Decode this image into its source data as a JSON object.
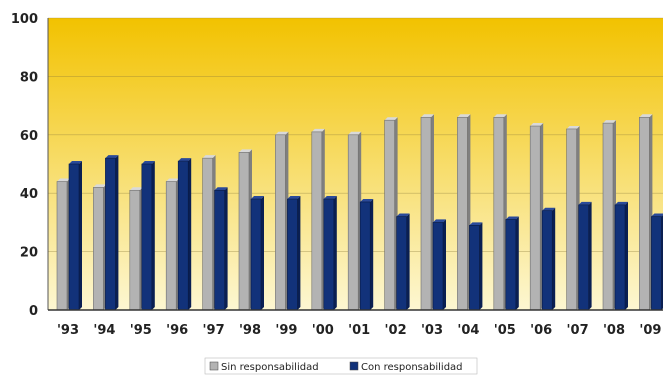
{
  "chart_data": {
    "type": "bar",
    "categories": [
      "'93",
      "'94",
      "'95",
      "'96",
      "'97",
      "'98",
      "'99",
      "'00",
      "'01",
      "'02",
      "'03",
      "'04",
      "'05",
      "'06",
      "'07",
      "'08",
      "'09"
    ],
    "series": [
      {
        "name": "Sin responsabilidad",
        "color": "#b3b3b3",
        "values": [
          44,
          42,
          41,
          44,
          52,
          54,
          60,
          61,
          60,
          65,
          66,
          66,
          66,
          63,
          62,
          64,
          66
        ]
      },
      {
        "name": "Con responsabilidad",
        "color": "#12327a",
        "values": [
          50,
          52,
          50,
          51,
          41,
          38,
          38,
          38,
          37,
          32,
          30,
          29,
          31,
          34,
          36,
          36,
          32
        ]
      }
    ],
    "yticks": [
      "0",
      "20",
      "40",
      "60",
      "80",
      "100"
    ],
    "ylim": [
      0,
      100
    ],
    "grid": true,
    "legend_position": "bottom",
    "plot_background": {
      "top": "#f2c200",
      "bottom": "#fdf7d2"
    }
  }
}
